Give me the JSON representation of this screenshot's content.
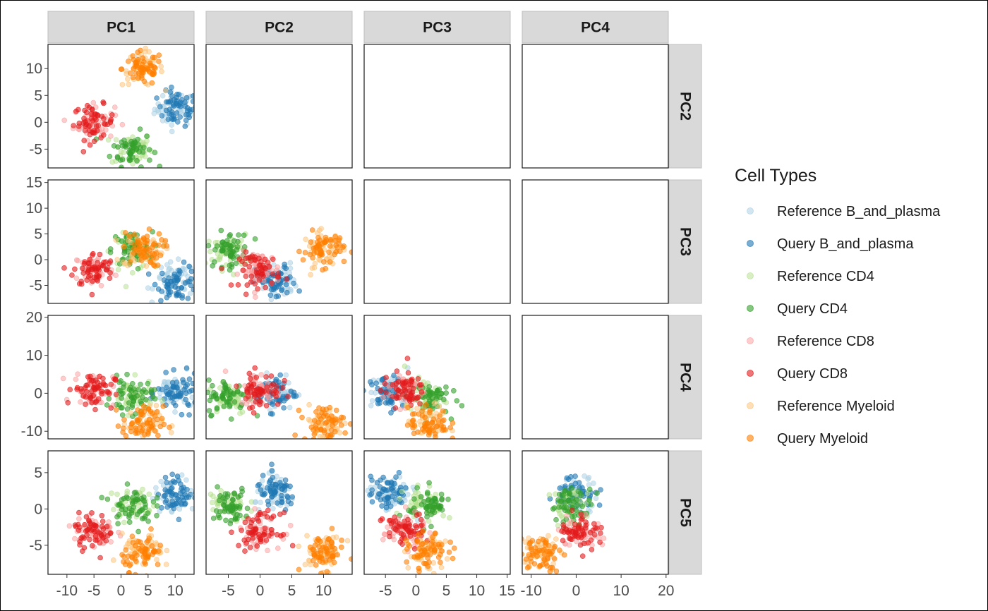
{
  "chart_data": {
    "type": "scatter",
    "facet_layout": "lower-triangle pairs matrix",
    "columns": [
      "PC1",
      "PC2",
      "PC3",
      "PC4"
    ],
    "rows": [
      "PC2",
      "PC3",
      "PC4",
      "PC5"
    ],
    "axis_ranges": {
      "PC1": [
        -13.5,
        13.5
      ],
      "PC2": [
        -8.5,
        14.5
      ],
      "PC3": [
        -8.5,
        15.5
      ],
      "PC4": [
        -12,
        20.5
      ],
      "PC5": [
        -9,
        8
      ]
    },
    "x_ticks": {
      "PC1": {
        "values": [
          -10,
          -5,
          0,
          5,
          10
        ],
        "labels": [
          "-10",
          "-5",
          "0",
          "5",
          "10"
        ]
      },
      "PC2": {
        "values": [
          -5,
          0,
          5,
          10
        ],
        "labels": [
          "-5",
          "0",
          "5",
          "10"
        ]
      },
      "PC3": {
        "values": [
          -5,
          0,
          5,
          10,
          15
        ],
        "labels": [
          "-5",
          "0",
          "5",
          "10",
          "15"
        ]
      },
      "PC4": {
        "values": [
          -10,
          0,
          10,
          20
        ],
        "labels": [
          "-10",
          "0",
          "10",
          "20"
        ]
      }
    },
    "y_ticks": {
      "PC2": {
        "values": [
          -5,
          0,
          5,
          10
        ],
        "labels": [
          "-5",
          "0",
          "5",
          "10"
        ]
      },
      "PC3": {
        "values": [
          -5,
          0,
          5,
          10,
          15
        ],
        "labels": [
          "-5",
          "0",
          "5",
          "10",
          "15"
        ]
      },
      "PC4": {
        "values": [
          -10,
          0,
          10,
          20
        ],
        "labels": [
          "-10",
          "0",
          "10",
          "20"
        ]
      },
      "PC5": {
        "values": [
          -5,
          0,
          5
        ],
        "labels": [
          "-5",
          "0",
          "5"
        ]
      }
    },
    "legend_title": "Cell Types",
    "legend_position": "right",
    "series": [
      {
        "name": "Reference B_and_plasma",
        "color": "#a6cee3",
        "alpha": 0.5,
        "centroid": {
          "PC1": 10,
          "PC2": 2.5,
          "PC3": -4,
          "PC4": 0.5,
          "PC5": 2
        }
      },
      {
        "name": "Query B_and_plasma",
        "color": "#1f78b4",
        "alpha": 0.6,
        "centroid": {
          "PC1": 10.5,
          "PC2": 2.5,
          "PC3": -4.5,
          "PC4": 0,
          "PC5": 2.2
        }
      },
      {
        "name": "Reference CD4",
        "color": "#b2df8a",
        "alpha": 0.5,
        "centroid": {
          "PC1": 2,
          "PC2": -5,
          "PC3": 1.5,
          "PC4": -1,
          "PC5": 0.5
        }
      },
      {
        "name": "Query CD4",
        "color": "#33a02c",
        "alpha": 0.6,
        "centroid": {
          "PC1": 2,
          "PC2": -5,
          "PC3": 2,
          "PC4": -1,
          "PC5": 0.5
        }
      },
      {
        "name": "Reference CD8",
        "color": "#fb9a99",
        "alpha": 0.5,
        "centroid": {
          "PC1": -5,
          "PC2": 0,
          "PC3": -2,
          "PC4": 1,
          "PC5": -3
        }
      },
      {
        "name": "Query CD8",
        "color": "#e31a1c",
        "alpha": 0.6,
        "centroid": {
          "PC1": -5,
          "PC2": 0,
          "PC3": -2,
          "PC4": 1,
          "PC5": -3
        }
      },
      {
        "name": "Reference Myeloid",
        "color": "#fdbf6f",
        "alpha": 0.5,
        "centroid": {
          "PC1": 4,
          "PC2": 10,
          "PC3": 2,
          "PC4": -8,
          "PC5": -6
        }
      },
      {
        "name": "Query Myeloid",
        "color": "#ff7f00",
        "alpha": 0.6,
        "centroid": {
          "PC1": 4,
          "PC2": 10,
          "PC3": 2,
          "PC4": -8,
          "PC5": -6
        }
      }
    ],
    "grid": false
  }
}
